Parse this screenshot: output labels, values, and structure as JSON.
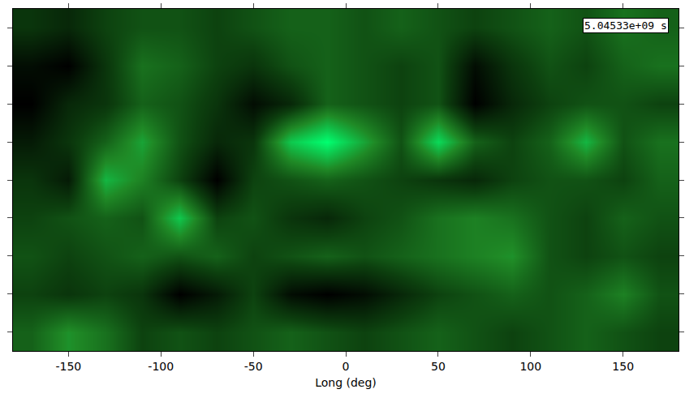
{
  "chart_data": {
    "type": "heatmap",
    "x_label": "Long (deg)",
    "annotation": "5.04533e+09 s",
    "color": "#00ff70",
    "xlim": [
      -180,
      180
    ],
    "xticks": [
      -150,
      -100,
      -50,
      0,
      50,
      100,
      150
    ],
    "ylim": [
      -90,
      90
    ],
    "yticks": [
      -80,
      -60,
      -40,
      -20,
      0,
      20,
      40,
      60,
      80
    ],
    "tick_labels": "x",
    "x": [
      -170,
      -150,
      -130,
      -110,
      -90,
      -70,
      -50,
      -30,
      -10,
      10,
      30,
      50,
      70,
      90,
      110,
      130,
      150,
      170
    ],
    "y": [
      -80,
      -60,
      -40,
      -20,
      0,
      20,
      40,
      60,
      80
    ],
    "z": [
      [
        0.5,
        0.65,
        0.55,
        0.4,
        0.45,
        0.4,
        0.45,
        0.5,
        0.45,
        0.4,
        0.45,
        0.5,
        0.45,
        0.4,
        0.45,
        0.5,
        0.45,
        0.4
      ],
      [
        0.4,
        0.35,
        0.4,
        0.35,
        0.15,
        0.25,
        0.4,
        0.2,
        0.15,
        0.2,
        0.3,
        0.4,
        0.45,
        0.5,
        0.45,
        0.5,
        0.6,
        0.45
      ],
      [
        0.45,
        0.4,
        0.45,
        0.5,
        0.45,
        0.5,
        0.4,
        0.45,
        0.5,
        0.45,
        0.5,
        0.55,
        0.6,
        0.65,
        0.45,
        0.4,
        0.45,
        0.4
      ],
      [
        0.4,
        0.45,
        0.5,
        0.45,
        0.8,
        0.4,
        0.45,
        0.35,
        0.3,
        0.4,
        0.45,
        0.55,
        0.6,
        0.55,
        0.45,
        0.4,
        0.5,
        0.45
      ],
      [
        0.35,
        0.25,
        0.75,
        0.6,
        0.4,
        0.15,
        0.4,
        0.45,
        0.5,
        0.45,
        0.4,
        0.35,
        0.3,
        0.4,
        0.45,
        0.45,
        0.4,
        0.5
      ],
      [
        0.25,
        0.35,
        0.5,
        0.7,
        0.45,
        0.3,
        0.35,
        0.8,
        0.95,
        0.7,
        0.45,
        0.85,
        0.5,
        0.4,
        0.5,
        0.75,
        0.45,
        0.55
      ],
      [
        0.15,
        0.3,
        0.35,
        0.5,
        0.45,
        0.35,
        0.2,
        0.3,
        0.5,
        0.45,
        0.4,
        0.45,
        0.15,
        0.3,
        0.4,
        0.45,
        0.45,
        0.4
      ],
      [
        0.2,
        0.15,
        0.35,
        0.55,
        0.5,
        0.4,
        0.35,
        0.45,
        0.5,
        0.45,
        0.4,
        0.45,
        0.2,
        0.35,
        0.45,
        0.4,
        0.5,
        0.55
      ],
      [
        0.35,
        0.3,
        0.4,
        0.45,
        0.45,
        0.4,
        0.45,
        0.5,
        0.5,
        0.45,
        0.5,
        0.45,
        0.4,
        0.45,
        0.5,
        0.45,
        0.55,
        0.5
      ]
    ]
  }
}
